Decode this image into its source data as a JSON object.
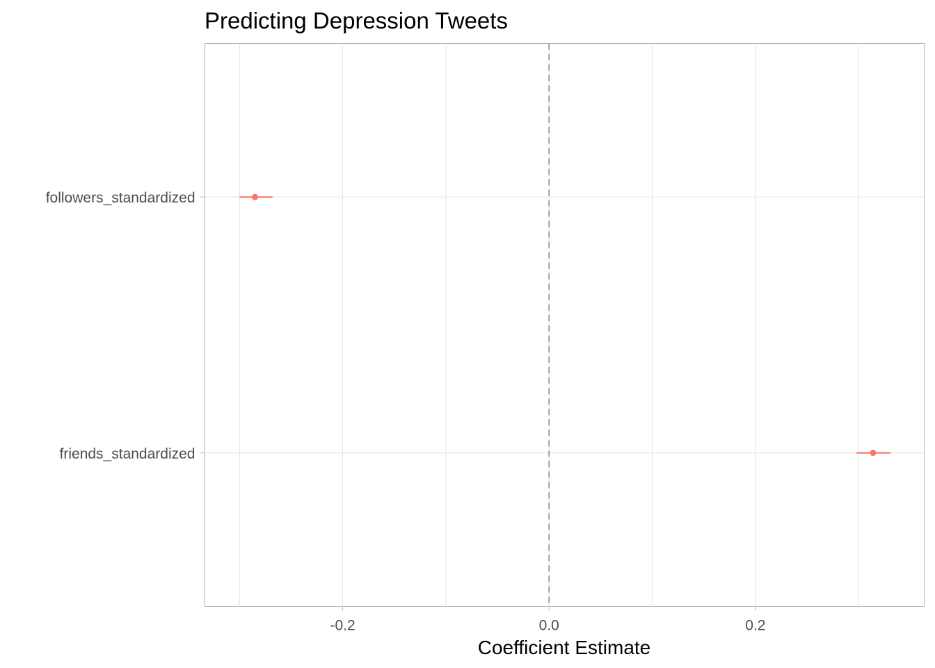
{
  "chart_data": {
    "type": "scatter",
    "subtype": "coefficient-plot",
    "title": "Predicting Depression Tweets",
    "xlabel": "Coefficient Estimate",
    "ylabel": "",
    "xlim": [
      -0.3336,
      0.3636
    ],
    "xticks": [
      -0.2,
      0.0,
      0.2
    ],
    "xtick_labels": [
      "-0.2",
      "0.0",
      "0.2"
    ],
    "grid": true,
    "reference_line": {
      "x": 0,
      "style": "dashed",
      "color": "#9e9e9e"
    },
    "categories": [
      "followers_standardized",
      "friends_standardized"
    ],
    "series": [
      {
        "estimates": [
          -0.285,
          0.314
        ],
        "ci_low": [
          -0.3,
          0.298
        ],
        "ci_high": [
          -0.268,
          0.331
        ],
        "color": "#f8766d"
      }
    ]
  }
}
